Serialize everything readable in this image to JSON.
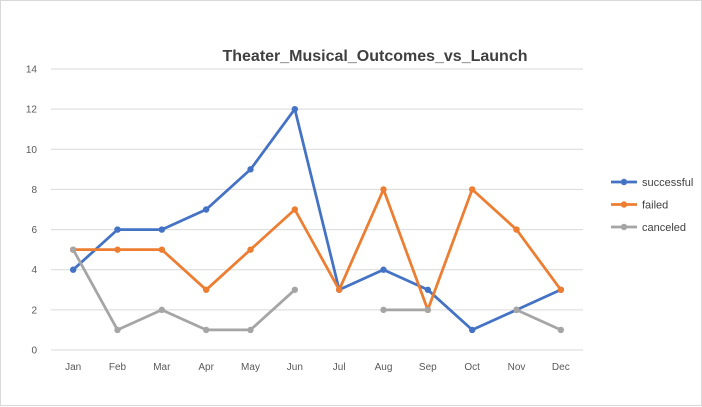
{
  "chart_data": {
    "type": "line",
    "title": "Theater_Musical_Outcomes_vs_Launch",
    "xlabel": "",
    "ylabel": "",
    "categories": [
      "Jan",
      "Feb",
      "Mar",
      "Apr",
      "May",
      "Jun",
      "Jul",
      "Aug",
      "Sep",
      "Oct",
      "Nov",
      "Dec"
    ],
    "ylim": [
      0,
      14
    ],
    "yticks": [
      "0",
      "2",
      "4",
      "6",
      "8",
      "10",
      "12",
      "14"
    ],
    "grid": "horizontal",
    "legend_position": "right",
    "series": [
      {
        "name": "successful",
        "color": "#4472c4",
        "values": [
          4,
          6,
          6,
          7,
          9,
          12,
          3,
          4,
          3,
          1,
          2,
          3
        ]
      },
      {
        "name": "failed",
        "color": "#ed7d31",
        "values": [
          5,
          5,
          5,
          3,
          5,
          7,
          3,
          8,
          2,
          8,
          6,
          3
        ]
      },
      {
        "name": "canceled",
        "color": "#a5a5a5",
        "values": [
          5,
          1,
          2,
          1,
          1,
          3,
          null,
          2,
          2,
          null,
          2,
          1
        ]
      }
    ]
  }
}
